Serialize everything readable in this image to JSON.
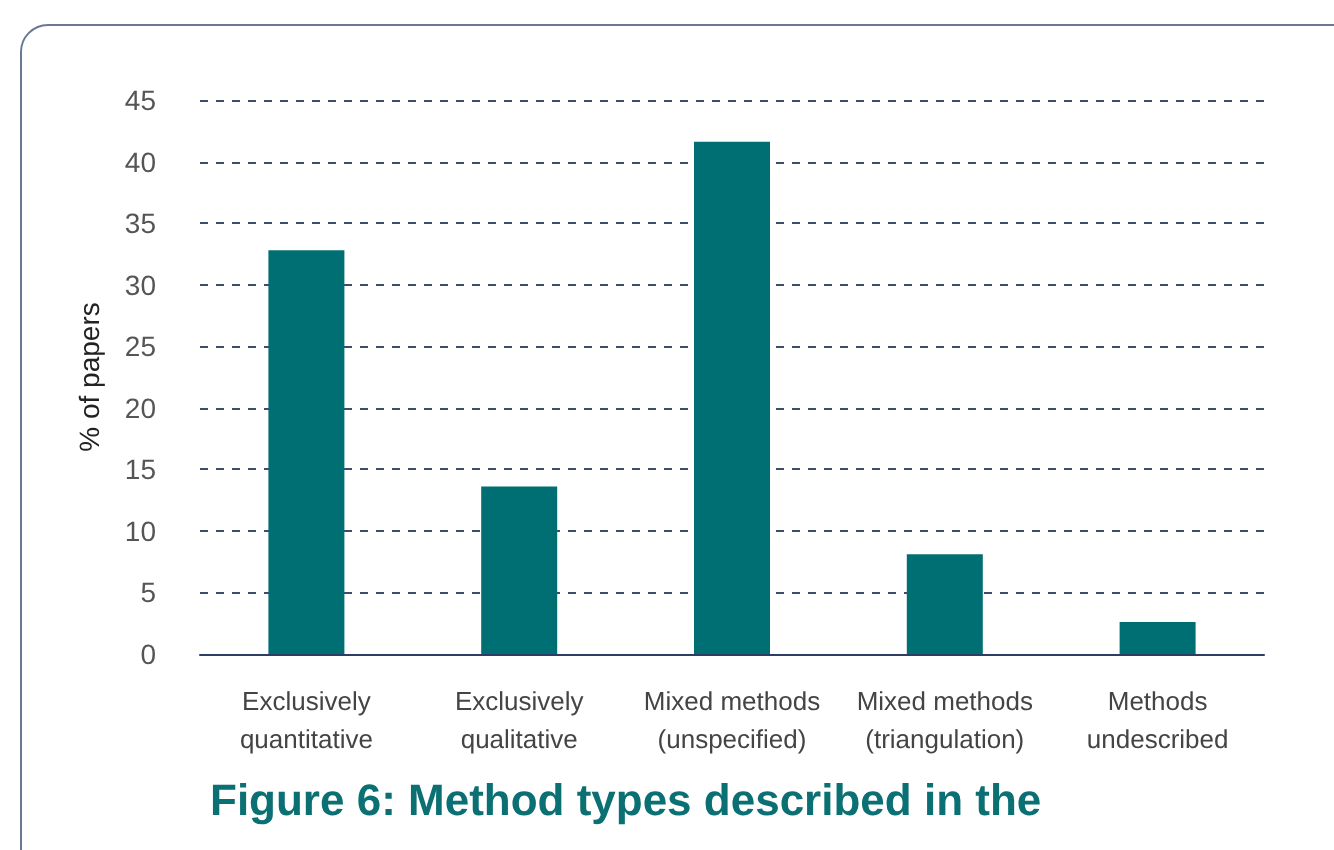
{
  "chart_data": {
    "type": "bar",
    "title": "Figure 6: Method types described in the",
    "ylabel": "% of papers",
    "categories": [
      "Exclusively\nquantitative",
      "Exclusively\nqualitative",
      "Mixed methods\n(unspecified)",
      "Mixed methods\n(triangulation)",
      "Methods\nundescribed"
    ],
    "values": [
      32.8,
      13.6,
      41.6,
      8.1,
      2.6
    ],
    "color": "#006f73",
    "ylim": [
      0,
      45
    ],
    "yticks": [
      0,
      5,
      10,
      15,
      20,
      25,
      30,
      35,
      40,
      45
    ],
    "grid": "y"
  }
}
